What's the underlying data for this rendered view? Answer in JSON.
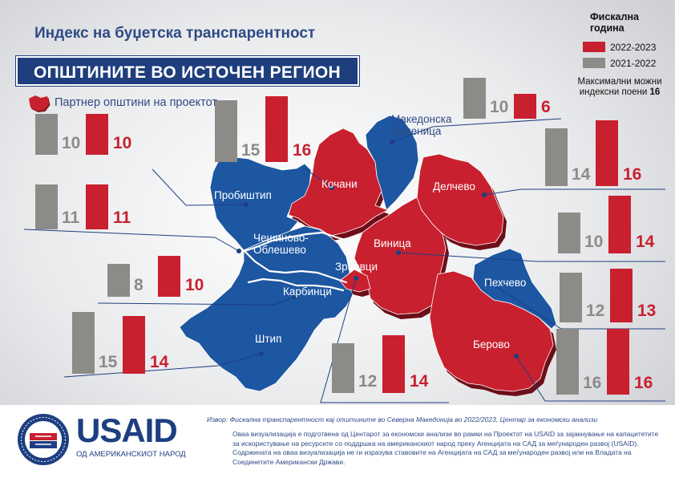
{
  "header": {
    "title": "Индекс на буџетска транспарентност",
    "banner": "ОПШТИНИТЕ ВО ИСТОЧЕН РЕГИОН"
  },
  "legend": {
    "title": "Фискална година",
    "items": [
      {
        "label": "2022-2023",
        "color": "#c8202f"
      },
      {
        "label": "2021-2022",
        "color": "#8d8b88"
      }
    ],
    "max_note": "Максимални можни индексни поени",
    "max_value": "16"
  },
  "partner_note": "Партнер општини на проектот",
  "colors": {
    "partner_region": "#c8202f",
    "other_region": "#1d56a1",
    "bar_2022_2023": "#c8202f",
    "bar_2021_2022": "#8d8b88",
    "brand_blue": "#1e3e7d"
  },
  "municipalities": [
    {
      "name": "Кочани",
      "partner": true,
      "y2021": 15,
      "y2022": 16
    },
    {
      "name": "Пробиштип",
      "partner": false,
      "y2021": 10,
      "y2022": 10
    },
    {
      "name": "Чешиново-Облешево",
      "partner": false,
      "y2021": 11,
      "y2022": 11
    },
    {
      "name": "Карбинци",
      "partner": false,
      "y2021": 8,
      "y2022": 10
    },
    {
      "name": "Штип",
      "partner": false,
      "y2021": 15,
      "y2022": 14
    },
    {
      "name": "Зрновци",
      "partner": true,
      "y2021": 12,
      "y2022": 14
    },
    {
      "name": "Македонска Каменица",
      "partner": false,
      "y2021": 10,
      "y2022": 6
    },
    {
      "name": "Делчево",
      "partner": true,
      "y2021": 14,
      "y2022": 16
    },
    {
      "name": "Виница",
      "partner": true,
      "y2021": 10,
      "y2022": 14
    },
    {
      "name": "Пехчево",
      "partner": false,
      "y2021": 12,
      "y2022": 13
    },
    {
      "name": "Берово",
      "partner": true,
      "y2021": 16,
      "y2022": 16
    }
  ],
  "footer": {
    "source": "Извор: Фискална транспарентност кај општините во Северна Македонија во 2022/2023, Центар за економски анализи",
    "disclaimer": "Оваа визуализација е подготвена од Центарот за економски анализи во рамки на Проектот на USAID за зајакнување на капацитетите за искористување на ресурсите со поддршка на американскиот народ преку Агенцијата на САД за меѓународен развој (USAID). Содржината на оваа визуализација не ги изразува ставовите на Агенцијата на САД за меѓународен развој или на Владата на Соединетите Американски Држави.",
    "logo_word": "USAID",
    "logo_sub": "ОД АМЕРИКАНСКИОТ НАРОД",
    "seal_text": "UNITED STATES AGENCY · INTERNATIONAL DEVELOPMENT"
  }
}
